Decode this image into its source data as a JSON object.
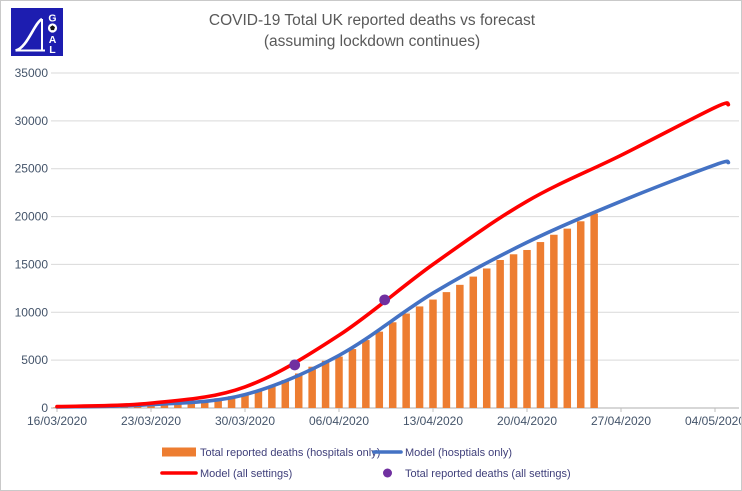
{
  "logo": {
    "letters": [
      "G",
      "A",
      "L"
    ],
    "bg_color": "#1D1DB0"
  },
  "colors": {
    "grid": "#D9D9D9",
    "axis_line": "#BFBFBF",
    "axis_text": "#44546A",
    "legend_text": "#3F3F7A",
    "title_text": "#595959"
  },
  "chart_data": {
    "type": "combo-bar-line",
    "title": "COVID-19 Total UK reported deaths vs forecast",
    "subtitle": "(assuming lockdown continues)",
    "grid": "horizontal",
    "x_axis": {
      "start_date": "16/03/2020",
      "tick_interval_days": 7,
      "tick_labels": [
        "16/03/2020",
        "23/03/2020",
        "30/03/2020",
        "06/04/2020",
        "13/04/2020",
        "20/04/2020",
        "27/04/2020",
        "04/05/2020"
      ]
    },
    "y_axis": {
      "min": 0,
      "max": 35000,
      "step": 5000,
      "tick_labels": [
        "0",
        "5000",
        "10000",
        "15000",
        "20000",
        "25000",
        "30000",
        "35000"
      ]
    },
    "series": {
      "bars": {
        "label": "Total reported deaths (hospitals only)",
        "marker": "rect",
        "color": "#ED7D31",
        "start_date": "16/03/2020",
        "frequency": "daily",
        "values": [
          67,
          71,
          104,
          144,
          177,
          233,
          281,
          335,
          422,
          465,
          578,
          759,
          1019,
          1228,
          1408,
          1789,
          2352,
          2921,
          3605,
          4313,
          4934,
          5373,
          6159,
          7097,
          7978,
          8958,
          9875,
          10612,
          11329,
          12107,
          12868,
          13729,
          14576,
          15464,
          16060,
          16509,
          17337,
          18100,
          18738,
          19506,
          20319
        ]
      },
      "model_hospitals": {
        "label": "Model (hosptials only)",
        "marker": "line",
        "color": "#4472C4",
        "anchor_days": [
          0,
          7,
          14,
          21,
          28,
          35,
          42,
          49,
          50
        ],
        "anchor_values": [
          100,
          350,
          1400,
          5500,
          12000,
          17300,
          21600,
          25400,
          25650
        ]
      },
      "model_all_settings": {
        "label": "Model (all settings)",
        "marker": "line",
        "color": "#FF0000",
        "anchor_days": [
          0,
          7,
          14,
          21,
          28,
          35,
          42,
          49,
          50
        ],
        "anchor_values": [
          150,
          500,
          2200,
          7600,
          15000,
          21600,
          26400,
          31400,
          31700
        ]
      },
      "reported_all_settings": {
        "label": "Total reported deaths (all settings)",
        "marker": "dot",
        "color": "#7030A0",
        "points": [
          {
            "date": "03/04/2020",
            "day": 17.7,
            "value": 4500
          },
          {
            "date": "09/04/2020",
            "day": 24.4,
            "value": 11300
          }
        ]
      }
    },
    "legend": {
      "position": "bottom",
      "rows": [
        [
          "bars",
          "model_hospitals"
        ],
        [
          "model_all_settings",
          "reported_all_settings"
        ]
      ]
    }
  }
}
